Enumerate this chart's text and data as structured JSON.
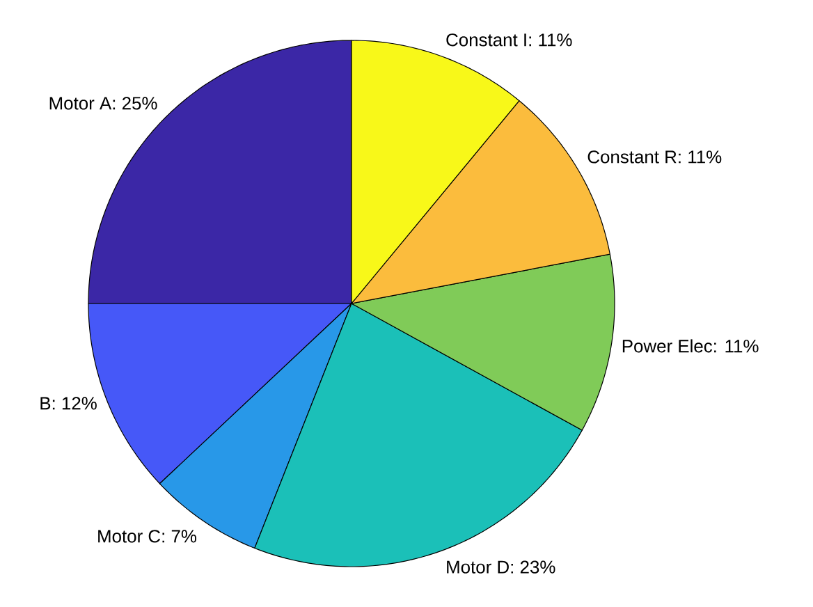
{
  "chart_data": {
    "type": "pie",
    "categories": [
      "Motor A: 25%",
      "B: 12%",
      "Motor C: 7%",
      "Motor D: 23%",
      "Power Elec: 11%",
      "Constant R: 11%",
      "Constant I: 11%"
    ],
    "values": [
      25,
      12,
      7,
      23,
      11,
      11,
      11
    ],
    "colors": [
      "#3b27a6",
      "#4658f8",
      "#2898e8",
      "#1bc0b8",
      "#80cb58",
      "#fbbc3d",
      "#f8f819"
    ]
  }
}
